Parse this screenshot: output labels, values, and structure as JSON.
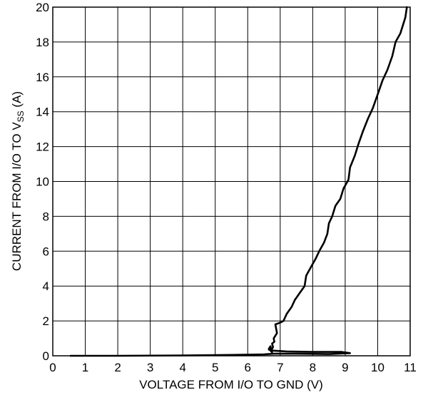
{
  "chart_data": {
    "type": "line",
    "xlabel": "VOLTAGE FROM I/O TO GND (V)",
    "ylabel_main": "CURRENT FROM I/O TO V",
    "ylabel_sub": "SS",
    "ylabel_tail": " (A)",
    "xlim": [
      0,
      11
    ],
    "ylim": [
      0,
      20
    ],
    "x_ticks": [
      "0",
      "1",
      "2",
      "3",
      "4",
      "5",
      "6",
      "7",
      "8",
      "9",
      "10",
      "11"
    ],
    "y_ticks": [
      "0",
      "2",
      "4",
      "6",
      "8",
      "10",
      "12",
      "14",
      "16",
      "18",
      "20"
    ],
    "grid": true,
    "series": [
      {
        "x": [
          0.55,
          2.0,
          4.0,
          5.5,
          6.5,
          6.8,
          7.5,
          8.5,
          9.15,
          8.9,
          8.0,
          7.2,
          6.75,
          6.65,
          6.7,
          6.75,
          6.65,
          6.7,
          6.72,
          6.78,
          6.75,
          6.82,
          6.8,
          6.9,
          6.85,
          7.0,
          7.1,
          7.2,
          7.35,
          7.45,
          7.6,
          7.75,
          7.8,
          7.95,
          8.1,
          8.2,
          8.35,
          8.45,
          8.5,
          8.6,
          8.7,
          8.85,
          8.95,
          9.1,
          9.15,
          9.3,
          9.4,
          9.55,
          9.7,
          9.85,
          10.0,
          10.15,
          10.3,
          10.45,
          10.55,
          10.7,
          10.85,
          10.9
        ],
        "y": [
          0.0,
          0.0,
          0.02,
          0.05,
          0.08,
          0.12,
          0.12,
          0.1,
          0.15,
          0.22,
          0.22,
          0.25,
          0.3,
          0.35,
          0.45,
          0.2,
          0.4,
          0.55,
          0.3,
          0.5,
          0.7,
          0.8,
          1.0,
          1.3,
          1.8,
          1.9,
          2.0,
          2.4,
          2.8,
          3.2,
          3.6,
          4.0,
          4.6,
          5.1,
          5.6,
          6.0,
          6.5,
          7.0,
          7.6,
          8.0,
          8.6,
          9.0,
          9.6,
          10.1,
          10.8,
          11.5,
          12.1,
          12.9,
          13.6,
          14.2,
          15.0,
          15.8,
          16.4,
          17.2,
          18.0,
          18.5,
          19.4,
          20.0
        ]
      }
    ]
  }
}
